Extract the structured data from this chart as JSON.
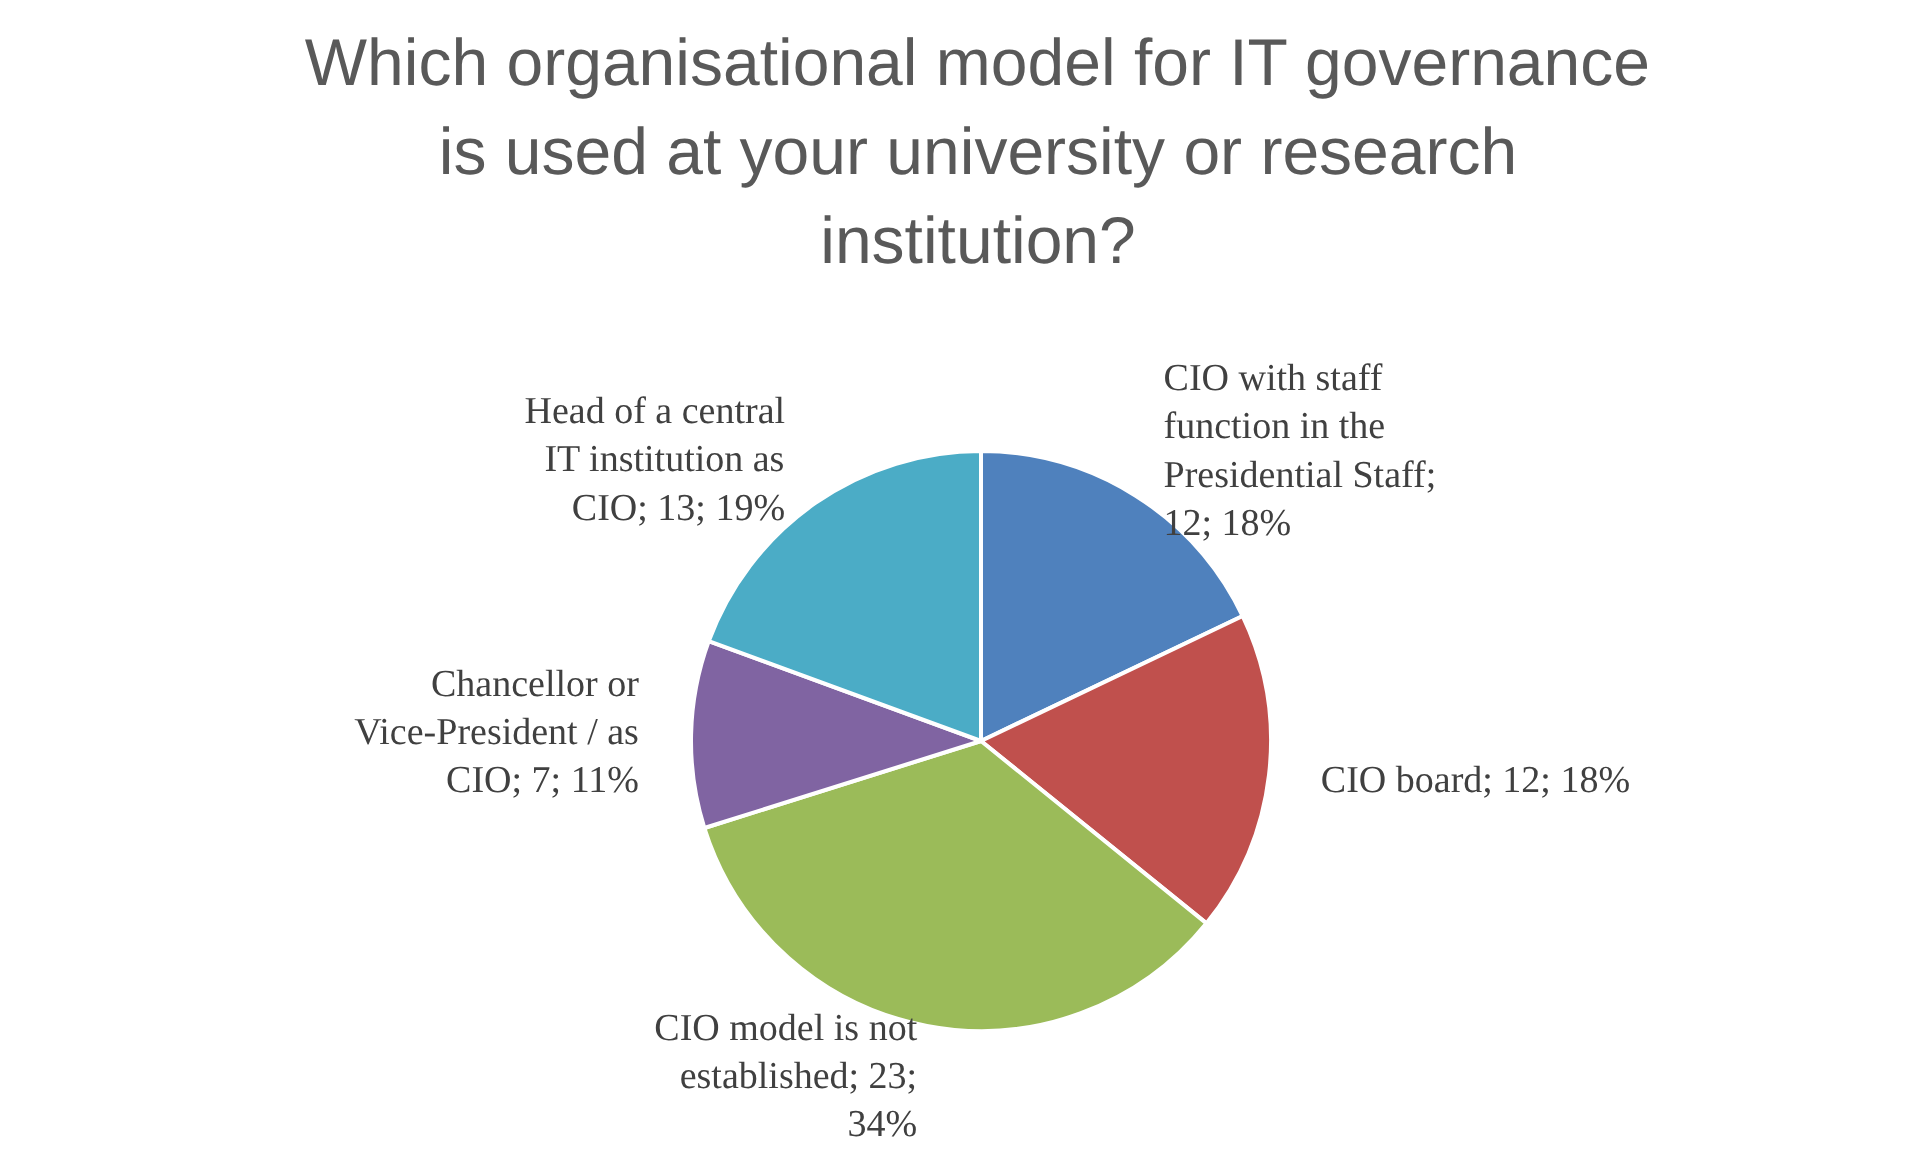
{
  "chart_data": {
    "type": "pie",
    "title": "Which organisational model for IT governance is used at your university or research institution?",
    "categories": [
      "CIO with staff function in the Presidential Staff; 12; 18%",
      "CIO board; 12; 18%",
      "CIO model is not established; 23; 34%",
      "Chancellor or Vice-President / as CIO; 7; 11%",
      "Head of a central IT institution as CIO; 13; 19%"
    ],
    "values": [
      12,
      12,
      23,
      7,
      13
    ],
    "colors": [
      "#4f81bd",
      "#c0504d",
      "#9bbb59",
      "#8064a2",
      "#4bacc6"
    ]
  }
}
